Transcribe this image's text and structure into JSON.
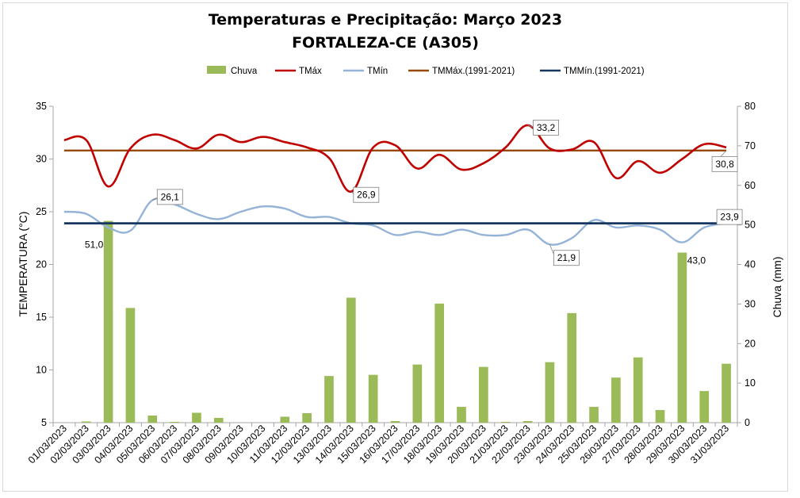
{
  "chart_data": {
    "type": "bar+line",
    "title": "Temperaturas e Precipitação: Março 2023",
    "subtitle": "FORTALEZA-CE (A305)",
    "ylabel_left": "TEMPERATURA (°C)",
    "ylabel_right": "Chuva (mm)",
    "ylim_left": [
      5,
      35
    ],
    "yticks_left": [
      "5",
      "10",
      "15",
      "20",
      "25",
      "30",
      "35"
    ],
    "ylim_right": [
      0,
      80
    ],
    "yticks_right": [
      "0",
      "10",
      "20",
      "30",
      "40",
      "50",
      "60",
      "70",
      "80"
    ],
    "categories": [
      "01/03/2023",
      "02/03/2023",
      "03/03/2023",
      "04/03/2023",
      "05/03/2023",
      "06/03/2023",
      "07/03/2023",
      "08/03/2023",
      "09/03/2023",
      "10/03/2023",
      "11/03/2023",
      "12/03/2023",
      "13/03/2023",
      "14/03/2023",
      "15/03/2023",
      "16/03/2023",
      "17/03/2023",
      "18/03/2023",
      "19/03/2023",
      "20/03/2023",
      "21/03/2023",
      "22/03/2023",
      "23/03/2023",
      "24/03/2023",
      "25/03/2023",
      "26/03/2023",
      "27/03/2023",
      "28/03/2023",
      "29/03/2023",
      "30/03/2023",
      "31/03/2023"
    ],
    "series": [
      {
        "name": "Chuva",
        "type": "bar",
        "axis": "right",
        "color": "#9bbb59",
        "values": [
          0,
          0.3,
          51.0,
          29.0,
          1.8,
          0.2,
          2.5,
          1.2,
          0,
          0,
          1.5,
          2.4,
          11.8,
          31.6,
          12.1,
          0.4,
          14.7,
          30.1,
          4.0,
          14.1,
          0.2,
          0.4,
          15.3,
          27.7,
          4.0,
          11.4,
          16.5,
          3.2,
          43.0,
          8.0,
          14.9
        ]
      },
      {
        "name": "TMáx",
        "type": "line",
        "axis": "left",
        "color": "#c00000",
        "values": [
          31.8,
          31.8,
          27.4,
          31.0,
          32.3,
          31.8,
          31.0,
          32.3,
          31.6,
          32.1,
          31.6,
          31.1,
          30.1,
          26.9,
          31.1,
          31.3,
          29.1,
          30.4,
          29.0,
          29.6,
          31.1,
          33.2,
          31.0,
          30.9,
          31.6,
          28.2,
          29.8,
          28.7,
          30.0,
          31.4,
          31.1
        ]
      },
      {
        "name": "TMín",
        "type": "line",
        "axis": "left",
        "color": "#95b3d7",
        "values": [
          25.0,
          24.8,
          23.5,
          23.2,
          26.1,
          25.7,
          24.8,
          24.3,
          25.0,
          25.5,
          25.3,
          24.5,
          24.5,
          23.9,
          23.7,
          22.8,
          23.1,
          22.8,
          23.3,
          22.8,
          22.8,
          23.3,
          21.9,
          22.5,
          24.2,
          23.5,
          23.7,
          23.3,
          22.1,
          23.5,
          23.9
        ]
      },
      {
        "name": "TMMáx.(1991-2021)",
        "type": "line",
        "axis": "left",
        "color": "#984807",
        "values": [
          30.8,
          30.8,
          30.8,
          30.8,
          30.8,
          30.8,
          30.8,
          30.8,
          30.8,
          30.8,
          30.8,
          30.8,
          30.8,
          30.8,
          30.8,
          30.8,
          30.8,
          30.8,
          30.8,
          30.8,
          30.8,
          30.8,
          30.8,
          30.8,
          30.8,
          30.8,
          30.8,
          30.8,
          30.8,
          30.8,
          30.8
        ]
      },
      {
        "name": "TMMín.(1991-2021)",
        "type": "line",
        "axis": "left",
        "color": "#17375e",
        "values": [
          23.9,
          23.9,
          23.9,
          23.9,
          23.9,
          23.9,
          23.9,
          23.9,
          23.9,
          23.9,
          23.9,
          23.9,
          23.9,
          23.9,
          23.9,
          23.9,
          23.9,
          23.9,
          23.9,
          23.9,
          23.9,
          23.9,
          23.9,
          23.9,
          23.9,
          23.9,
          23.9,
          23.9,
          23.9,
          23.9,
          23.9
        ]
      }
    ],
    "annotations": [
      {
        "text": "51,0",
        "series": "Chuva",
        "index": 2,
        "boxed": false
      },
      {
        "text": "26,1",
        "series": "TMín",
        "index": 4,
        "boxed": true
      },
      {
        "text": "26,9",
        "series": "TMáx",
        "index": 13,
        "boxed": true
      },
      {
        "text": "33,2",
        "series": "TMáx",
        "index": 21,
        "boxed": true
      },
      {
        "text": "21,9",
        "series": "TMín",
        "index": 22,
        "boxed": true
      },
      {
        "text": "43,0",
        "series": "Chuva",
        "index": 28,
        "boxed": false
      },
      {
        "text": "30,8",
        "series": "TMMáx.(1991-2021)",
        "index": 30,
        "boxed": true
      },
      {
        "text": "23,9",
        "series": "TMMín.(1991-2021)",
        "index": 30,
        "boxed": true
      }
    ],
    "legend": [
      "Chuva",
      "TMáx",
      "TMín",
      "TMMáx.(1991-2021)",
      "TMMín.(1991-2021)"
    ],
    "legend_position": "top",
    "grid": false
  }
}
